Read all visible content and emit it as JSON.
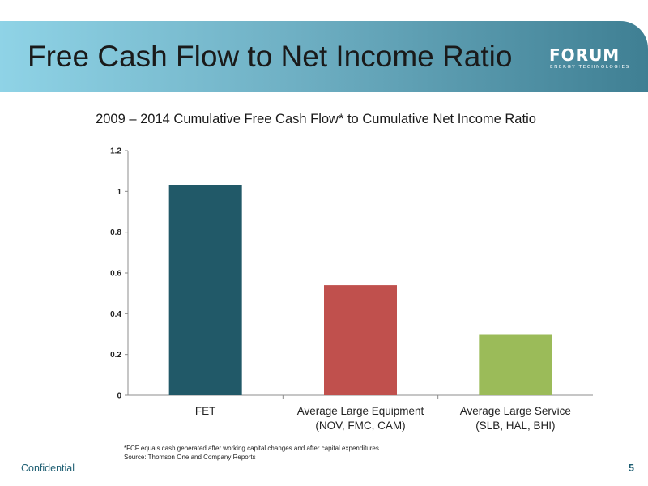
{
  "slide": {
    "title": "Free Cash Flow to Net Income Ratio",
    "logo_word": "FORUM",
    "logo_sub": "ENERGY TECHNOLOGIES",
    "footer_left": "Confidential",
    "page_number": "5"
  },
  "footnotes": [
    "*FCF equals cash generated after working capital changes and after capital expenditures",
    "Source: Thomson One and Company Reports"
  ],
  "colors": {
    "header_gradient": [
      "#8fd3e6",
      "#3f7f93"
    ],
    "footer_text": "#1f5f73"
  },
  "chart_data": {
    "type": "bar",
    "title": "2009 – 2014 Cumulative Free Cash Flow* to Cumulative Net Income Ratio",
    "xlabel": "",
    "ylabel": "",
    "categories": [
      [
        "FET"
      ],
      [
        "Average Large Equipment",
        "(NOV, FMC, CAM)"
      ],
      [
        "Average Large Service",
        "(SLB, HAL, BHI)"
      ]
    ],
    "values": [
      1.03,
      0.54,
      0.3
    ],
    "colors": [
      "#215968",
      "#c0504d",
      "#9bbb59"
    ],
    "ylim": [
      0,
      1.2
    ],
    "yticks": [
      0,
      0.2,
      0.4,
      0.6,
      0.8,
      1,
      1.2
    ],
    "ytick_labels": [
      "0",
      "0.2",
      "0.4",
      "0.6",
      "0.8",
      "1",
      "1.2"
    ],
    "grid": false,
    "legend": "none"
  }
}
